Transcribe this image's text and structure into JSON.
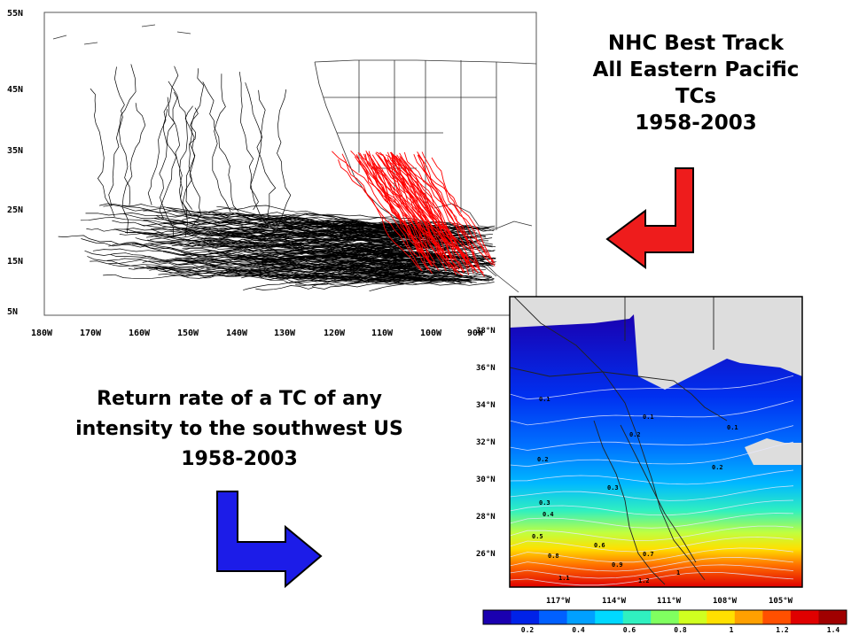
{
  "left_map": {
    "lat_labels": [
      "55N",
      "45N",
      "35N",
      "25N",
      "15N",
      "5N"
    ],
    "lon_labels": [
      "180W",
      "170W",
      "160W",
      "150W",
      "140W",
      "130W",
      "120W",
      "110W",
      "100W",
      "90W"
    ],
    "track_colors": {
      "other": "#000000",
      "southwest_us": "#ff0000"
    }
  },
  "title_top": {
    "lines": [
      "NHC Best Track",
      "All Eastern Pacific",
      "TCs",
      "1958-2003"
    ]
  },
  "title_bottom": {
    "lines": [
      "Return rate of a TC of any",
      "intensity to the southwest US",
      "1958-2003"
    ]
  },
  "arrows": {
    "top": {
      "color": "#ee1c1c",
      "direction": "down-left"
    },
    "bottom": {
      "color": "#1c1ce8",
      "direction": "down-right"
    }
  },
  "right_map": {
    "lat_labels": [
      "38°N",
      "36°N",
      "34°N",
      "32°N",
      "30°N",
      "28°N",
      "26°N"
    ],
    "lon_labels": [
      "117°W",
      "114°W",
      "111°W",
      "108°W",
      "105°W"
    ],
    "contour_labels": [
      "0.1",
      "0.1",
      "0.1",
      "0.2",
      "0.2",
      "0.2",
      "0.3",
      "0.3",
      "0.4",
      "0.5",
      "0.6",
      "0.7",
      "0.8",
      "0.9",
      "1",
      "1.1",
      "1.2"
    ],
    "colorbar_ticks": [
      "0.2",
      "0.4",
      "0.6",
      "0.8",
      "1",
      "1.2",
      "1.4"
    ],
    "colorbar_colors": [
      "#1a00b0",
      "#0022e8",
      "#0060ff",
      "#00a0ff",
      "#00d8ff",
      "#30f0c0",
      "#80ff60",
      "#d0ff20",
      "#ffe000",
      "#ffa000",
      "#ff5000",
      "#e00000",
      "#a00000"
    ]
  }
}
